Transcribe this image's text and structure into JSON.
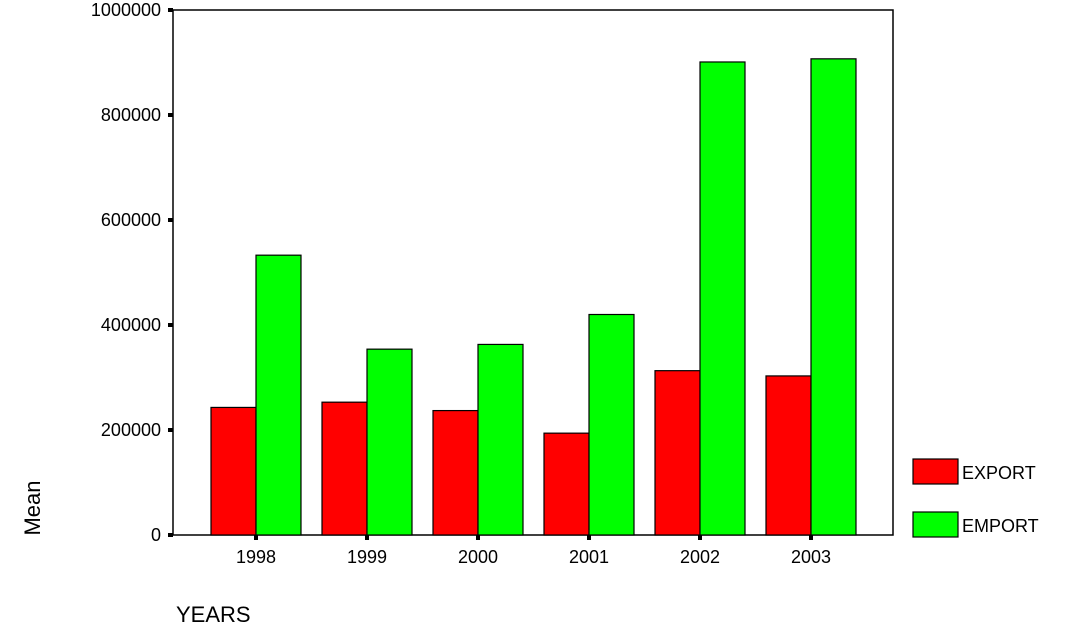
{
  "chart_data": {
    "type": "bar",
    "categories": [
      "1998",
      "1999",
      "2000",
      "2001",
      "2002",
      "2003"
    ],
    "series": [
      {
        "name": "EXPORT",
        "color": "#ff0000",
        "values": [
          243000,
          253000,
          237000,
          194000,
          313000,
          303000
        ]
      },
      {
        "name": "EMPORT",
        "color": "#00ff00",
        "values": [
          533000,
          354000,
          363000,
          420000,
          901000,
          907000
        ]
      }
    ],
    "title": "",
    "xlabel": "YEARS",
    "ylabel": "Mean",
    "ylim": [
      0,
      1000000
    ],
    "yticks": [
      "0",
      "200000",
      "400000",
      "600000",
      "800000",
      "1000000"
    ],
    "grid": false,
    "legend_position": "right"
  }
}
